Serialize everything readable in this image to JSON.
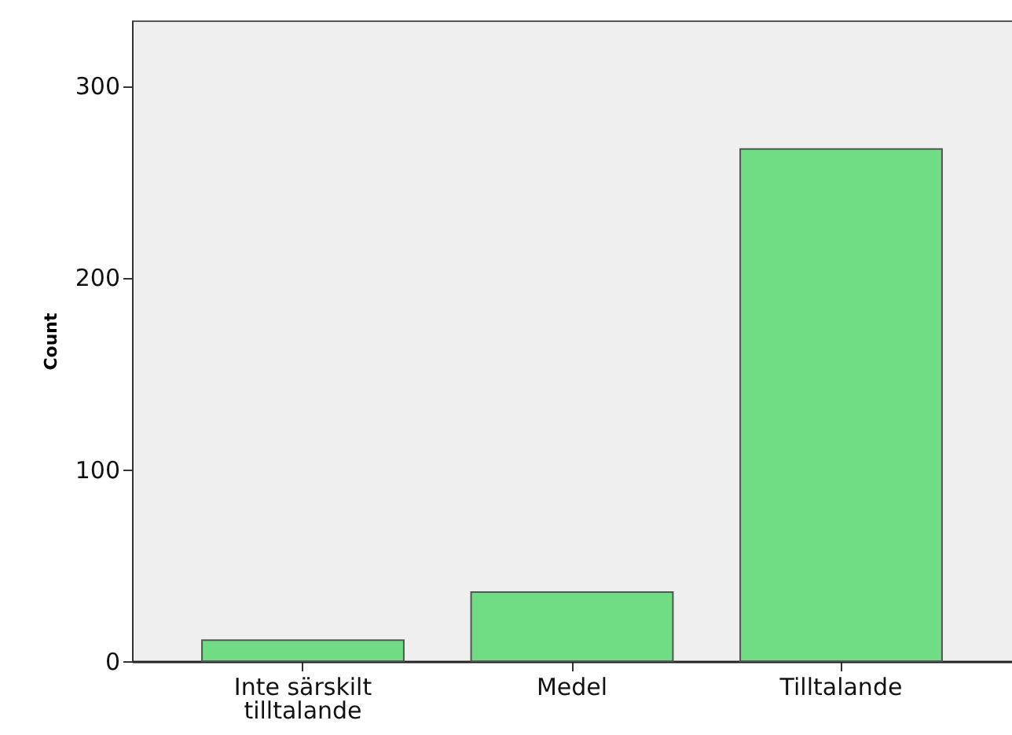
{
  "chart_data": {
    "type": "bar",
    "ylabel": "Count",
    "categories": [
      "Inte särskilt tilltalande",
      "Medel",
      "Tilltalande"
    ],
    "values": [
      11,
      36,
      267
    ],
    "color": "#70dd84",
    "ylim": [
      0,
      334
    ],
    "yticks": [
      0,
      100,
      200,
      300
    ],
    "grid": false
  }
}
